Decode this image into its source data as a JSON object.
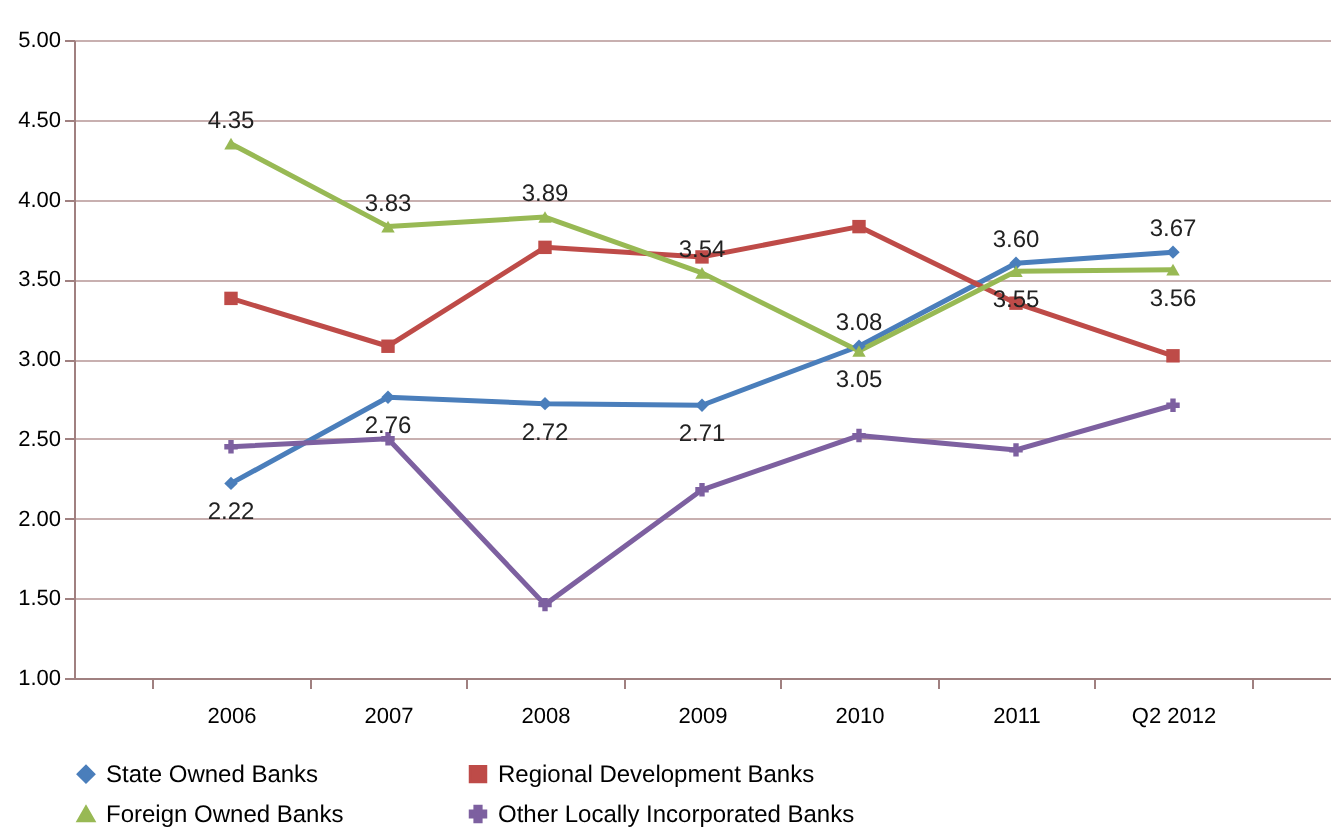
{
  "chart_data": {
    "type": "line",
    "categories": [
      "2006",
      "2007",
      "2008",
      "2009",
      "2010",
      "2011",
      "Q2 2012"
    ],
    "ylim": [
      1,
      5
    ],
    "yticks": [
      {
        "value": 1,
        "label": "1.00"
      },
      {
        "value": 1.5,
        "label": "1.50"
      },
      {
        "value": 2,
        "label": "2.00"
      },
      {
        "value": 2.5,
        "label": "2.50"
      },
      {
        "value": 3,
        "label": "3.00"
      },
      {
        "value": 3.5,
        "label": "3.50"
      },
      {
        "value": 4,
        "label": "4.00"
      },
      {
        "value": 4.5,
        "label": "4.50"
      },
      {
        "value": 5,
        "label": "5.00"
      }
    ],
    "grid": "y",
    "legend": "bottom",
    "series": [
      {
        "name": "State Owned Banks",
        "color": "#4a7ebb",
        "marker": "diamond",
        "values": [
          2.22,
          2.76,
          2.72,
          2.71,
          3.08,
          3.6,
          3.67
        ],
        "value_labels": [
          "2.22",
          "2.76",
          "2.72",
          "2.71",
          "3.08",
          "3.60",
          "3.67"
        ]
      },
      {
        "name": "Regional Development Banks",
        "color": "#be4b48",
        "marker": "square",
        "values": [
          3.38,
          3.08,
          3.7,
          3.64,
          3.83,
          3.35,
          3.02
        ]
      },
      {
        "name": "Foreign Owned Banks",
        "color": "#98b954",
        "marker": "triangle",
        "values": [
          4.35,
          3.83,
          3.89,
          3.54,
          3.05,
          3.55,
          3.56
        ],
        "value_labels": [
          "4.35",
          "3.83",
          "3.89",
          "3.54",
          "3.05",
          "3.55",
          "3.56"
        ]
      },
      {
        "name": "Other Locally Incorporated Banks",
        "color": "#7d60a0",
        "marker": "cross",
        "values": [
          2.45,
          2.5,
          1.46,
          2.18,
          2.52,
          2.43,
          2.71
        ]
      }
    ]
  }
}
